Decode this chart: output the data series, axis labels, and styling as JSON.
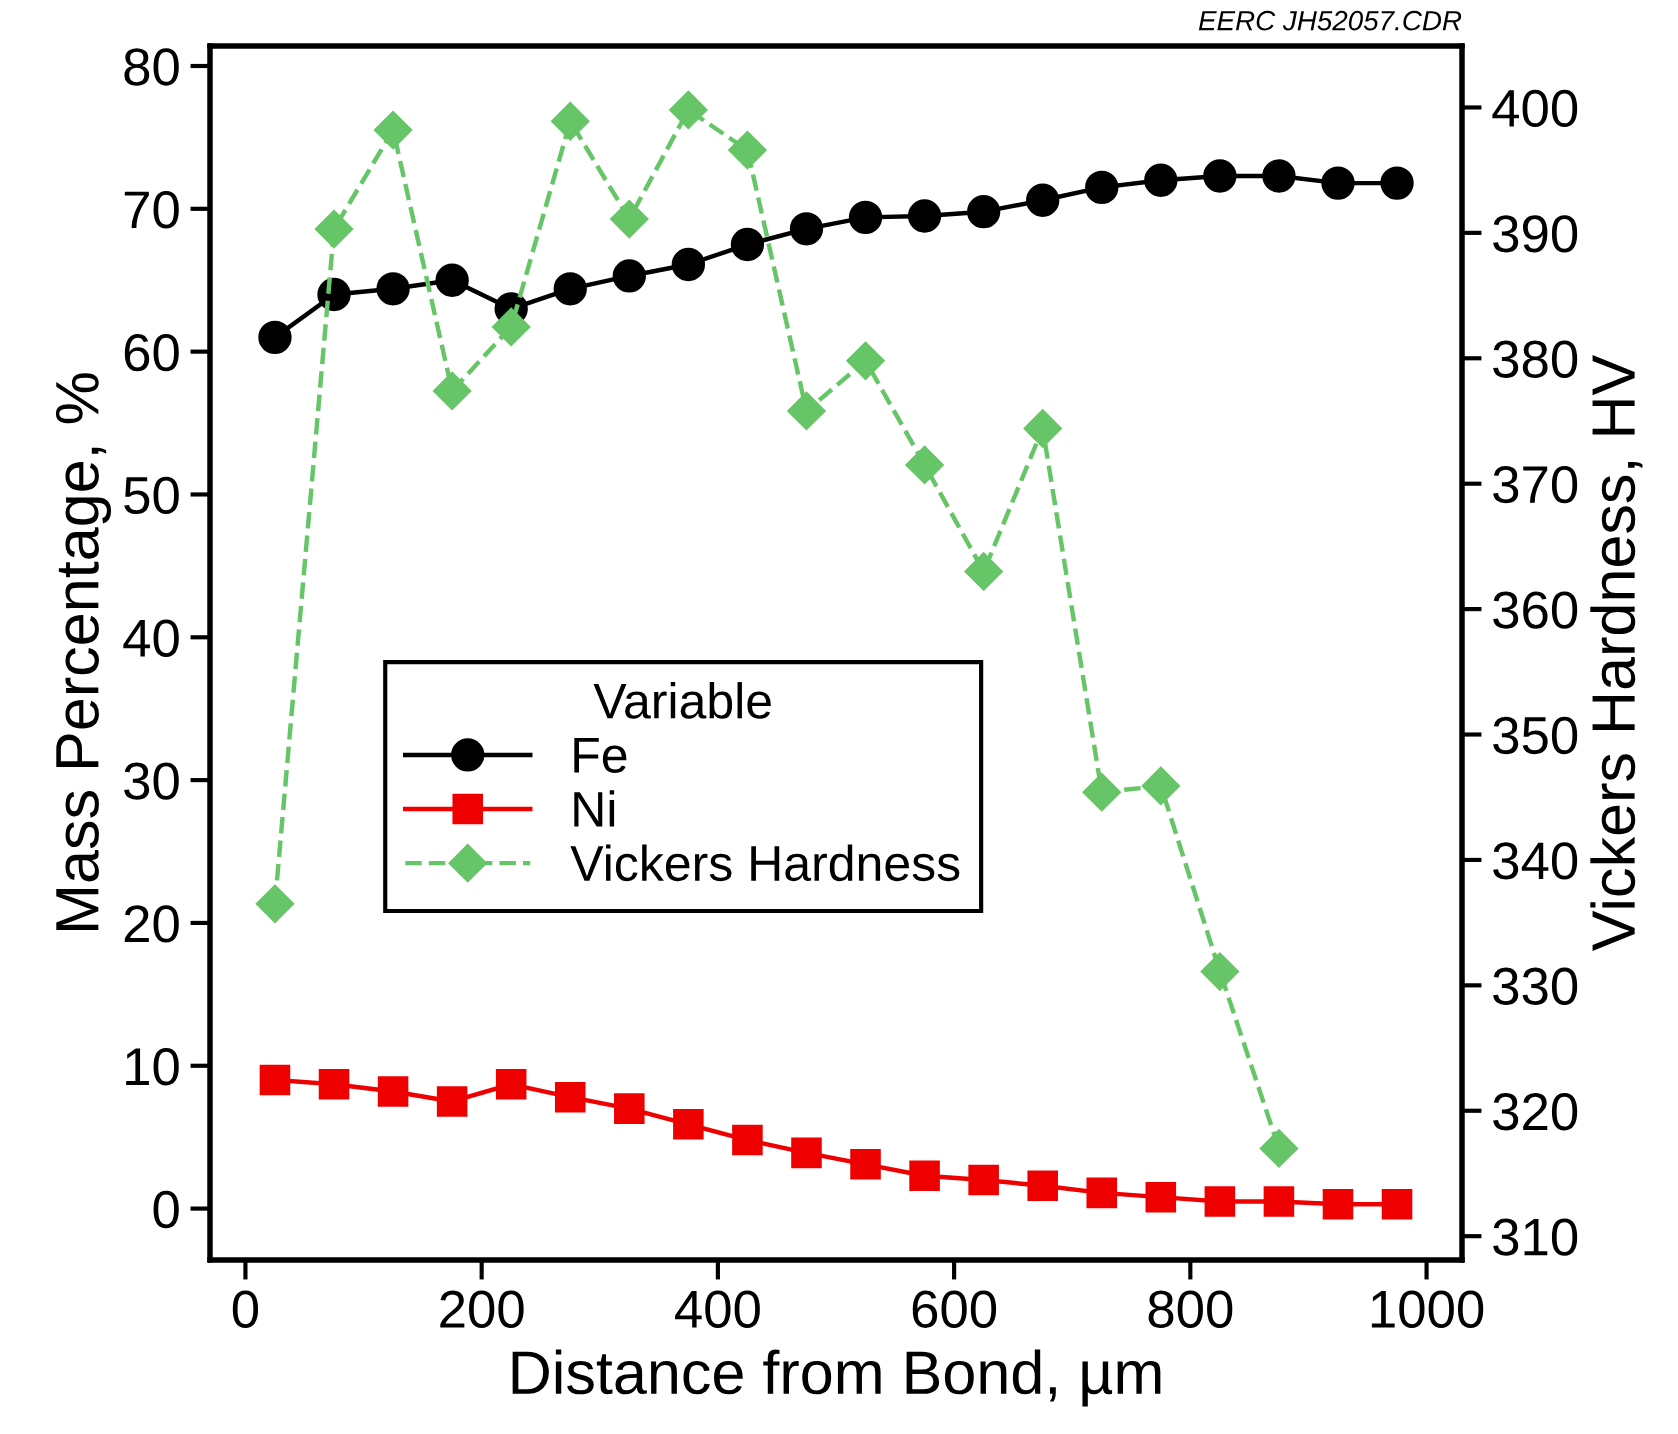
{
  "chart_data": {
    "type": "line",
    "xlabel": "Distance from Bond, µm",
    "ylabel": "Mass Percentage, %",
    "y2label": "Vickers Hardness, HV",
    "legend_title": "Variable",
    "legend": "left",
    "annotations": [
      "EERC JH52057.CDR"
    ],
    "x": [
      25,
      75,
      125,
      175,
      225,
      275,
      325,
      375,
      425,
      475,
      525,
      575,
      625,
      675,
      725,
      775,
      825,
      875,
      925,
      975
    ],
    "series": [
      {
        "name": "Fe",
        "color": "#000000",
        "marker": "circle",
        "line_style": "solid",
        "values": [
          61,
          64,
          64.4,
          65,
          63,
          64.4,
          65.3,
          66.1,
          67.5,
          68.6,
          69.4,
          69.5,
          69.8,
          70.6,
          71.5,
          72,
          72.3,
          72.3,
          71.8,
          71.8
        ]
      },
      {
        "name": "Ni",
        "color": "#ee0000",
        "marker": "square",
        "line_style": "solid",
        "values": [
          9,
          8.7,
          8.2,
          7.5,
          8.7,
          7.8,
          7,
          5.9,
          4.8,
          3.9,
          3.1,
          2.3,
          2,
          1.6,
          1.1,
          0.8,
          0.5,
          0.5,
          0.3,
          0.3
        ]
      },
      {
        "name": "Vickers Hardness",
        "color": "#66c566",
        "marker": "diamond",
        "line_style": "dashed",
        "axis": "y2",
        "x": [
          25,
          75,
          125,
          175,
          225,
          275,
          325,
          375,
          425,
          475,
          525,
          575,
          625,
          675,
          725,
          775,
          825,
          875
        ],
        "values": [
          336.5,
          390.3,
          398.2,
          377.4,
          382.5,
          398.9,
          391.1,
          399.8,
          396.6,
          375.8,
          379.8,
          371.5,
          363,
          374.4,
          345.4,
          345.9,
          331.1,
          317
        ]
      }
    ],
    "xlim": [
      -30,
      1030
    ],
    "xticks": [
      0,
      200,
      400,
      600,
      800,
      1000
    ],
    "ylim": [
      -3.6,
      81.4
    ],
    "yticks": [
      0,
      10,
      20,
      30,
      40,
      50,
      60,
      70,
      80
    ],
    "y2lim": [
      308.1,
      404.9
    ],
    "y2ticks": [
      310,
      320,
      330,
      340,
      350,
      360,
      370,
      380,
      390,
      400
    ],
    "grid": false
  }
}
